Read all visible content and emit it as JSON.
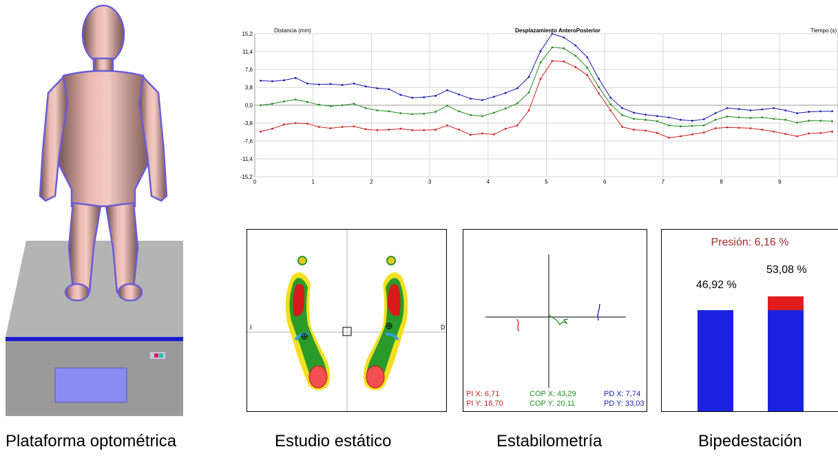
{
  "captions": {
    "platform": "Plataforma optométrica",
    "static": "Estudio estático",
    "stabilometry": "Estabilometría",
    "bipedestation": "Bipedestación"
  },
  "chart_data": {
    "type": "line",
    "title": "Desplazamiento AnteroPosterior",
    "ylabel": "Distancia (mm)",
    "xlabel": "Tiempo (s)",
    "xlim": [
      0,
      10
    ],
    "ylim": [
      -15.2,
      15.2
    ],
    "yticks": [
      "15,2",
      "11,4",
      "7,6",
      "3,8",
      "0,0",
      "-3,8",
      "-7,6",
      "-11,4",
      "-15,2"
    ],
    "ytick_values": [
      15.2,
      11.4,
      7.6,
      3.8,
      0,
      -3.8,
      -7.6,
      -11.4,
      -15.2
    ],
    "xticks": [
      "0",
      "1",
      "2",
      "3",
      "4",
      "5",
      "6",
      "7",
      "8",
      "9"
    ],
    "grid": true,
    "x": [
      0.1,
      0.3,
      0.5,
      0.7,
      0.9,
      1.1,
      1.3,
      1.5,
      1.7,
      1.9,
      2.1,
      2.3,
      2.5,
      2.7,
      2.9,
      3.1,
      3.3,
      3.5,
      3.7,
      3.9,
      4.1,
      4.3,
      4.5,
      4.7,
      4.9,
      5.1,
      5.3,
      5.5,
      5.7,
      5.9,
      6.1,
      6.3,
      6.5,
      6.7,
      6.9,
      7.1,
      7.3,
      7.5,
      7.7,
      7.9,
      8.1,
      8.3,
      8.5,
      8.7,
      8.9,
      9.1,
      9.3,
      9.5,
      9.7,
      9.9
    ],
    "series": [
      {
        "color": "#1a1aaa",
        "values": [
          5.2,
          5.1,
          5.3,
          5.8,
          4.6,
          4.4,
          4.5,
          4.3,
          4.6,
          4.0,
          3.6,
          3.4,
          2.2,
          1.6,
          1.7,
          2.0,
          3.2,
          2.3,
          1.4,
          1.1,
          1.8,
          2.6,
          3.6,
          6.0,
          11.5,
          15.2,
          14.4,
          12.7,
          10.2,
          5.6,
          1.6,
          -0.6,
          -1.6,
          -2.0,
          -2.3,
          -2.6,
          -3.1,
          -3.3,
          -3.0,
          -1.7,
          -0.6,
          -0.8,
          -1.1,
          -0.9,
          -0.6,
          -1.1,
          -1.7,
          -1.4,
          -1.3,
          -1.3
        ]
      },
      {
        "color": "#1f8c1f",
        "values": [
          0.0,
          0.3,
          0.8,
          1.2,
          0.7,
          0.1,
          -0.2,
          0.0,
          0.3,
          -0.6,
          -1.1,
          -1.3,
          -1.7,
          -1.9,
          -1.8,
          -1.4,
          -0.1,
          -1.3,
          -2.1,
          -2.3,
          -1.6,
          -0.7,
          0.4,
          2.7,
          9.1,
          12.3,
          12.1,
          10.5,
          8.0,
          3.8,
          0.2,
          -2.1,
          -2.9,
          -3.1,
          -3.4,
          -4.3,
          -4.5,
          -4.4,
          -4.3,
          -3.1,
          -2.4,
          -2.6,
          -2.7,
          -2.6,
          -2.9,
          -3.1,
          -3.7,
          -3.3,
          -3.3,
          -3.4
        ]
      },
      {
        "color": "#cc2222",
        "values": [
          -5.6,
          -5.0,
          -4.1,
          -3.8,
          -3.9,
          -4.6,
          -4.9,
          -4.6,
          -4.5,
          -5.1,
          -5.3,
          -5.2,
          -5.0,
          -5.3,
          -5.3,
          -5.2,
          -4.3,
          -5.2,
          -6.3,
          -6.0,
          -6.2,
          -5.0,
          -4.3,
          -1.1,
          5.6,
          9.4,
          9.3,
          8.1,
          6.4,
          2.5,
          -1.1,
          -4.6,
          -5.2,
          -5.4,
          -5.9,
          -6.9,
          -6.6,
          -6.2,
          -5.8,
          -4.9,
          -4.7,
          -4.8,
          -4.9,
          -5.2,
          -5.6,
          -6.1,
          -6.6,
          -6.0,
          -5.9,
          -5.6
        ]
      }
    ]
  },
  "static_study": {
    "left_marker": "I",
    "right_marker": "D"
  },
  "stabilometry": {
    "pi_x": "PI X: 6,71",
    "pi_y": "PI Y: 18,70",
    "cop_x": "COP X: 43,29",
    "cop_y": "COP Y: 20,11",
    "pd_x": "PD X: 7,74",
    "pd_y": "PD Y: 33,03"
  },
  "bipedestation": {
    "pressure_label": "Presión: 6,16 %",
    "left_label": "46,92 %",
    "right_label": "53,08 %",
    "left_pct": 46.92,
    "right_pct": 53.08,
    "pressure_pct": 6.16,
    "bar_color": "#1a22e0",
    "pressure_color": "#e01c1c"
  }
}
